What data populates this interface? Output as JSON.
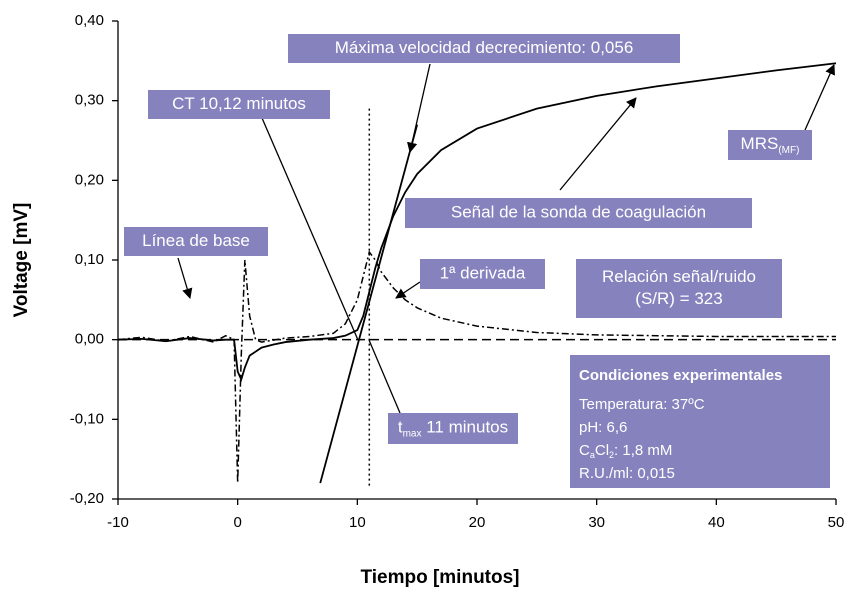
{
  "chart_data": {
    "type": "line",
    "xlabel": "Tiempo [minutos]",
    "ylabel": "Voltage [mV]",
    "xlim": [
      -10,
      50
    ],
    "xticks": [
      -10,
      0,
      10,
      20,
      30,
      40,
      50
    ],
    "ylim": [
      -0.2,
      0.4
    ],
    "yticks": [
      {
        "value": -0.2,
        "label": "-0,20"
      },
      {
        "value": -0.1,
        "label": "-0,10"
      },
      {
        "value": 0,
        "label": "0,00"
      },
      {
        "value": 0.1,
        "label": "0,10"
      },
      {
        "value": 0.2,
        "label": "0,20"
      },
      {
        "value": 0.3,
        "label": "0,30"
      },
      {
        "value": 0.4,
        "label": "0,40"
      }
    ],
    "grid": false,
    "series": [
      {
        "color": "#000000",
        "style": "dash",
        "x": [
          -10,
          50
        ],
        "values": [
          0,
          0
        ]
      },
      {
        "color": "#000000",
        "style": "dashdot",
        "x": [
          -10,
          -8,
          -6,
          -4,
          -2,
          -1,
          -0.3,
          0,
          0.3,
          0.6,
          1,
          1.5,
          2,
          4,
          6,
          8,
          9,
          10,
          10.5,
          11,
          11.5,
          12,
          13,
          14,
          15,
          17,
          20,
          25,
          30,
          40,
          50
        ],
        "values": [
          0,
          0.003,
          -0.002,
          0.004,
          -0.003,
          0.005,
          0,
          -0.18,
          -0.02,
          0.1,
          0.03,
          0,
          -0.003,
          0.002,
          0.004,
          0.008,
          0.02,
          0.05,
          0.08,
          0.11,
          0.1,
          0.085,
          0.065,
          0.05,
          0.04,
          0.027,
          0.017,
          0.009,
          0.006,
          0.004,
          0.004
        ]
      },
      {
        "color": "#000000",
        "style": "solid",
        "x": [
          -10,
          -8,
          -6,
          -4,
          -2,
          -1,
          -0.3,
          0,
          0.3,
          0.6,
          1,
          2,
          3,
          4,
          6,
          8,
          9,
          10,
          10.5,
          11,
          11.5,
          12,
          13,
          14,
          15,
          17,
          20,
          25,
          30,
          35,
          40,
          45,
          50
        ],
        "values": [
          0,
          0.001,
          -0.002,
          0.002,
          -0.001,
          0,
          0,
          -0.04,
          -0.05,
          -0.035,
          -0.02,
          -0.01,
          -0.006,
          -0.003,
          0,
          0.002,
          0.005,
          0.012,
          0.03,
          0.06,
          0.09,
          0.115,
          0.155,
          0.185,
          0.208,
          0.238,
          0.265,
          0.29,
          0.306,
          0.318,
          0.328,
          0.338,
          0.347
        ]
      },
      {
        "color": "#000000",
        "style": "solid",
        "x": [
          6.9,
          15
        ],
        "values": [
          -0.18,
          0.27
        ]
      },
      {
        "color": "#000000",
        "style": "dot",
        "x": [
          11,
          11
        ],
        "values": [
          0.29,
          -0.185
        ]
      }
    ],
    "annotations": [
      {
        "text": "Máxima velocidad decrecimiento: 0,056"
      },
      {
        "text": "CT 10,12 minutos"
      },
      {
        "parts": [
          "MRS",
          "(MF)"
        ]
      },
      {
        "text": "Señal de la sonda de coagulación"
      },
      {
        "text": "Línea de base"
      },
      {
        "text": "1ª derivada"
      },
      {
        "lines": [
          "Relación señal/ruido",
          "(S/R) = 323"
        ]
      },
      {
        "parts": [
          "t",
          "max",
          " 11 minutos"
        ]
      }
    ],
    "conditions": {
      "title": "Condiciones experimentales",
      "lines": [
        {
          "text": "Temperatura: 37ºC"
        },
        {
          "text": "pH: 6,6"
        },
        {
          "parts": [
            "C",
            "a",
            "Cl",
            "2",
            ": 1,8 mM"
          ]
        },
        {
          "text": "R.U./ml: 0,015"
        }
      ]
    }
  }
}
